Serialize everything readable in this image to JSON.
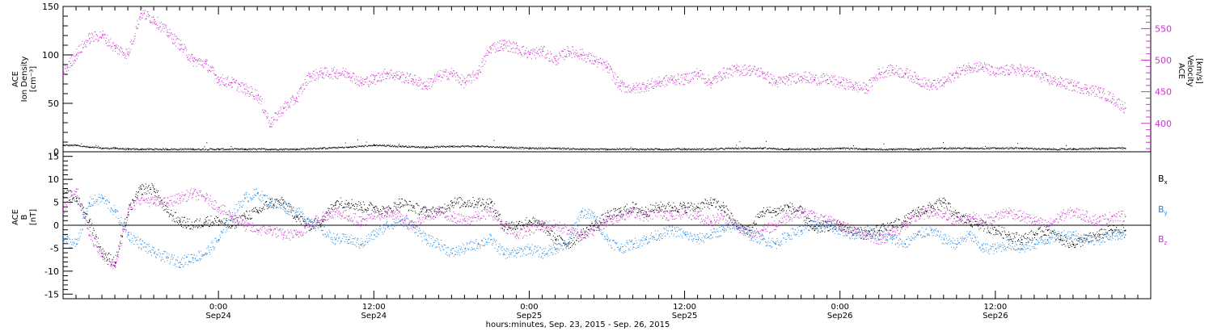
{
  "chart_data": [
    {
      "type": "scatter",
      "panel": "top",
      "ylabel_left": [
        "ACE",
        "Ion Density",
        "[cm⁻³]"
      ],
      "ylabel_right": [
        "ACE",
        "Velocity",
        "[km/s]"
      ],
      "yticks_left": [
        "0",
        "50",
        "100",
        "150"
      ],
      "ytick_values_left": [
        0,
        50,
        100,
        150
      ],
      "ylim_left": [
        0,
        150
      ],
      "yticks_right": [
        "400",
        "450",
        "500",
        "550"
      ],
      "ytick_values_right": [
        400,
        450,
        500,
        550
      ],
      "ylim_right": [
        355,
        585
      ],
      "series": [
        {
          "role": "density",
          "color": "#000000",
          "axis": "left",
          "x_hours": [
            0,
            1,
            2,
            3,
            4,
            5,
            6,
            8,
            10,
            12,
            14,
            16,
            18,
            20,
            22,
            24,
            26,
            28,
            30,
            32,
            34,
            36,
            38,
            40,
            42,
            44,
            46,
            48,
            50,
            52,
            54,
            56,
            58,
            60,
            62,
            64,
            66,
            68,
            70,
            72,
            74,
            76,
            78,
            80,
            82
          ],
          "values": [
            7,
            7,
            5,
            4,
            4,
            3,
            3,
            3,
            3,
            3,
            3,
            3,
            3,
            4,
            5,
            7,
            6,
            5,
            6,
            6,
            5,
            4,
            4,
            3,
            3,
            3,
            3,
            3,
            3,
            4,
            4,
            3,
            3,
            4,
            3,
            3,
            3,
            4,
            4,
            4,
            4,
            3,
            3,
            4,
            4
          ]
        },
        {
          "role": "velocity",
          "color": "#cc33cc",
          "axis": "right",
          "x_hours": [
            0,
            1,
            2,
            3,
            4,
            5,
            6,
            7,
            8,
            9,
            10,
            11,
            12,
            13,
            14,
            15,
            16,
            17,
            18,
            19,
            20,
            21,
            22,
            23,
            24,
            25,
            26,
            27,
            28,
            29,
            30,
            31,
            32,
            33,
            34,
            35,
            36,
            37,
            38,
            39,
            40,
            41,
            42,
            43,
            44,
            45,
            46,
            47,
            48,
            49,
            50,
            51,
            52,
            53,
            54,
            55,
            56,
            57,
            58,
            59,
            60,
            61,
            62,
            63,
            64,
            65,
            66,
            67,
            68,
            69,
            70,
            71,
            72,
            73,
            74,
            75,
            76,
            77,
            78,
            79,
            80,
            81,
            82
          ],
          "values": [
            480,
            510,
            535,
            540,
            520,
            510,
            575,
            565,
            545,
            525,
            500,
            495,
            470,
            465,
            455,
            445,
            400,
            425,
            440,
            475,
            480,
            480,
            480,
            465,
            470,
            480,
            475,
            470,
            460,
            475,
            480,
            465,
            480,
            520,
            525,
            520,
            510,
            515,
            500,
            515,
            510,
            500,
            490,
            460,
            455,
            460,
            465,
            470,
            470,
            480,
            465,
            480,
            485,
            485,
            480,
            465,
            470,
            475,
            470,
            470,
            465,
            460,
            455,
            480,
            485,
            480,
            470,
            460,
            465,
            480,
            490,
            490,
            480,
            485,
            485,
            480,
            470,
            465,
            460,
            455,
            450,
            440,
            425
          ]
        }
      ]
    },
    {
      "type": "scatter",
      "panel": "bottom",
      "ylabel_left": [
        "ACE",
        "B",
        "[nT]"
      ],
      "yticks_left": [
        "-15",
        "-10",
        "-5",
        "0",
        "5",
        "10",
        "15"
      ],
      "ytick_values_left": [
        -15,
        -10,
        -5,
        0,
        5,
        10,
        15
      ],
      "ylim": [
        -16,
        16
      ],
      "legend_placement": "right",
      "series": [
        {
          "name": "Bx",
          "label_main": "B",
          "label_sub": "x",
          "color": "#000000",
          "x_hours": [
            0,
            1,
            2,
            3,
            4,
            5,
            6,
            7,
            8,
            9,
            10,
            11,
            12,
            13,
            14,
            15,
            16,
            17,
            18,
            19,
            20,
            21,
            22,
            23,
            24,
            25,
            26,
            27,
            28,
            29,
            30,
            31,
            32,
            33,
            34,
            35,
            36,
            37,
            38,
            39,
            40,
            41,
            42,
            43,
            44,
            45,
            46,
            47,
            48,
            49,
            50,
            51,
            52,
            53,
            54,
            55,
            56,
            57,
            58,
            59,
            60,
            61,
            62,
            63,
            64,
            65,
            66,
            67,
            68,
            69,
            70,
            71,
            72,
            73,
            74,
            75,
            76,
            77,
            78,
            79,
            80,
            81,
            82
          ],
          "values": [
            7,
            6,
            1,
            -6,
            -8,
            3,
            8,
            8,
            3,
            1,
            0,
            1,
            1,
            0,
            2,
            3,
            5,
            5,
            2,
            0,
            1,
            5,
            5,
            4,
            4,
            3,
            5,
            4,
            3,
            3,
            5,
            5,
            5,
            5,
            0,
            0,
            1,
            0,
            -3,
            -4,
            -2,
            0,
            2,
            3,
            4,
            3,
            4,
            4,
            4,
            4,
            5,
            4,
            0,
            -1,
            3,
            3,
            4,
            3,
            -1,
            0,
            0,
            -1,
            -2,
            -1,
            0,
            1,
            3,
            4,
            5,
            2,
            1,
            0,
            -1,
            -2,
            -3,
            -2,
            -1,
            -3,
            -4,
            -3,
            -2,
            -1,
            -1
          ]
        },
        {
          "name": "By",
          "label_main": "B",
          "label_sub": "y",
          "color": "#1e88e5",
          "x_hours": [
            0,
            1,
            2,
            3,
            4,
            5,
            6,
            7,
            8,
            9,
            10,
            11,
            12,
            13,
            14,
            15,
            16,
            17,
            18,
            19,
            20,
            21,
            22,
            23,
            24,
            25,
            26,
            27,
            28,
            29,
            30,
            31,
            32,
            33,
            34,
            35,
            36,
            37,
            38,
            39,
            40,
            41,
            42,
            43,
            44,
            45,
            46,
            47,
            48,
            49,
            50,
            51,
            52,
            53,
            54,
            55,
            56,
            57,
            58,
            59,
            60,
            61,
            62,
            63,
            64,
            65,
            66,
            67,
            68,
            69,
            70,
            71,
            72,
            73,
            74,
            75,
            76,
            77,
            78,
            79,
            80,
            81,
            82
          ],
          "values": [
            -3,
            -4,
            5,
            6,
            3,
            -2,
            -4,
            -6,
            -7,
            -8,
            -7,
            -6,
            -3,
            2,
            6,
            7,
            5,
            4,
            3,
            1,
            -1,
            -3,
            -3,
            -4,
            -2,
            0,
            1,
            0,
            -3,
            -4,
            -6,
            -5,
            -4,
            -3,
            -6,
            -6,
            -5,
            -6,
            -5,
            -4,
            3,
            2,
            -3,
            -5,
            -4,
            -3,
            -2,
            -1,
            -2,
            -3,
            -2,
            -1,
            0,
            -2,
            -3,
            -4,
            -2,
            -1,
            0,
            0,
            -1,
            -2,
            -1,
            -2,
            -3,
            -4,
            -2,
            -1,
            -3,
            -4,
            -2,
            -5,
            -5,
            -4,
            -5,
            -4,
            -3,
            -2,
            -2,
            -3,
            -3,
            -2,
            -2
          ]
        },
        {
          "name": "Bz",
          "label_main": "B",
          "label_sub": "z",
          "color": "#cc33cc",
          "x_hours": [
            0,
            1,
            2,
            3,
            4,
            5,
            6,
            7,
            8,
            9,
            10,
            11,
            12,
            13,
            14,
            15,
            16,
            17,
            18,
            19,
            20,
            21,
            22,
            23,
            24,
            25,
            26,
            27,
            28,
            29,
            30,
            31,
            32,
            33,
            34,
            35,
            36,
            37,
            38,
            39,
            40,
            41,
            42,
            43,
            44,
            45,
            46,
            47,
            48,
            49,
            50,
            51,
            52,
            53,
            54,
            55,
            56,
            57,
            58,
            59,
            60,
            61,
            62,
            63,
            64,
            65,
            66,
            67,
            68,
            69,
            70,
            71,
            72,
            73,
            74,
            75,
            76,
            77,
            78,
            79,
            80,
            81,
            82
          ],
          "values": [
            3,
            8,
            -2,
            -6,
            -9,
            3,
            6,
            5,
            5,
            6,
            7,
            6,
            4,
            2,
            0,
            -1,
            -1,
            -2,
            -2,
            0,
            2,
            3,
            2,
            1,
            2,
            3,
            2,
            0,
            2,
            3,
            2,
            1,
            2,
            3,
            0,
            -2,
            -1,
            0,
            0,
            -1,
            -2,
            -1,
            1,
            2,
            3,
            2,
            3,
            2,
            3,
            2,
            1,
            2,
            0,
            -2,
            -1,
            0,
            2,
            3,
            2,
            1,
            0,
            -1,
            -2,
            -3,
            -2,
            0,
            2,
            3,
            2,
            1,
            2,
            1,
            2,
            3,
            2,
            1,
            0,
            2,
            3,
            2,
            1,
            2,
            2
          ]
        }
      ]
    }
  ],
  "x_axis": {
    "xlim_hours": [
      0,
      84
    ],
    "ticks": [
      {
        "hour": 12,
        "time": "0:00",
        "date": "Sep24"
      },
      {
        "hour": 24,
        "time": "12:00",
        "date": "Sep24"
      },
      {
        "hour": 36,
        "time": "0:00",
        "date": "Sep25"
      },
      {
        "hour": 48,
        "time": "12:00",
        "date": "Sep25"
      },
      {
        "hour": 60,
        "time": "0:00",
        "date": "Sep26"
      },
      {
        "hour": 72,
        "time": "12:00",
        "date": "Sep26"
      }
    ],
    "xlabel": "hours:minutes, Sep. 23, 2015 - Sep. 26, 2015"
  }
}
